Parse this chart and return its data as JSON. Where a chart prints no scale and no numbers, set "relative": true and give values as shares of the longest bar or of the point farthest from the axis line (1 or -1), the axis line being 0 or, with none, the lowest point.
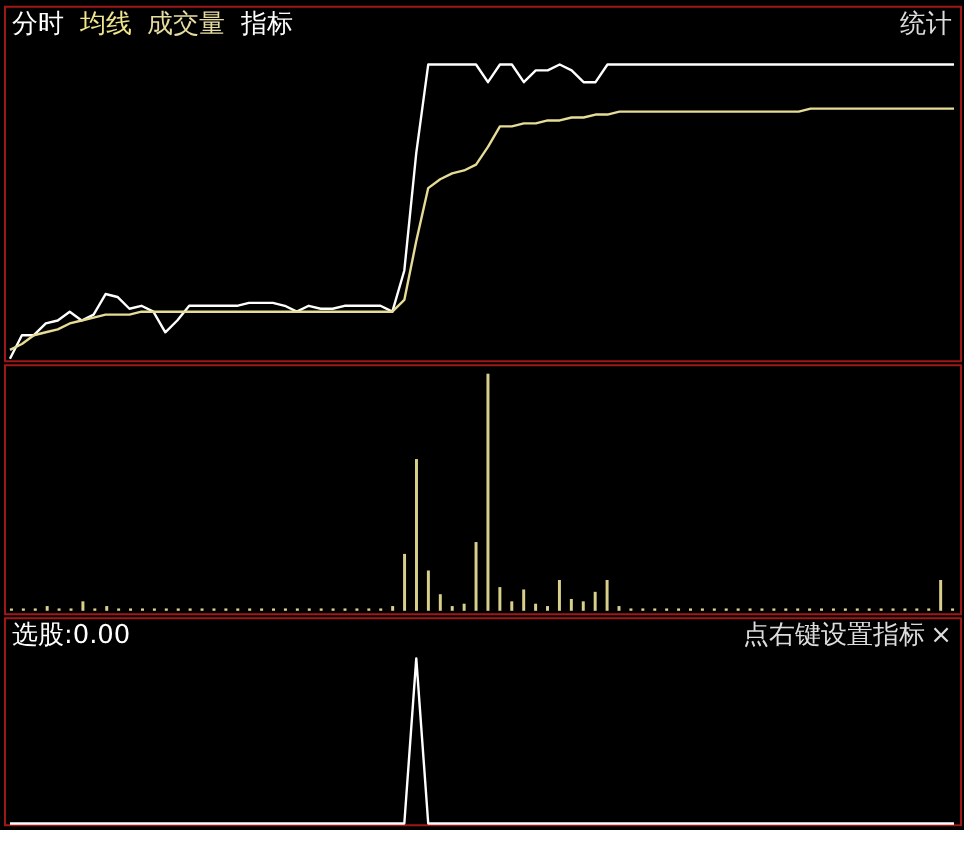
{
  "chart_data": [
    {
      "type": "line",
      "relative": true,
      "categories": [
        null,
        null,
        null,
        null,
        null,
        null,
        null,
        null,
        null,
        null,
        null,
        null,
        null,
        null,
        null,
        null,
        null,
        null,
        null,
        null,
        null,
        null,
        null,
        null,
        null,
        null,
        null,
        null,
        null,
        null,
        null,
        null,
        null,
        null,
        null,
        null,
        null,
        null,
        null,
        null,
        null,
        null,
        null,
        null,
        null,
        null,
        null,
        null,
        null,
        null,
        null,
        null,
        null,
        null,
        null,
        null,
        null,
        null,
        null,
        null,
        null,
        null,
        null,
        null,
        null,
        null,
        null,
        null,
        null,
        null,
        null,
        null,
        null,
        null,
        null,
        null,
        null,
        null,
        null,
        null
      ],
      "tick_labels": false,
      "marker": "none",
      "line_style": "solid",
      "annotations": [
        "分时",
        "均线",
        "成交量",
        "指标",
        "统计"
      ],
      "series": [
        {
          "color": "#ffffff",
          "values": [
            0,
            0.08,
            0.08,
            0.12,
            0.13,
            0.16,
            0.13,
            0.15,
            0.22,
            0.21,
            0.17,
            0.18,
            0.16,
            0.09,
            0.13,
            0.18,
            0.18,
            0.18,
            0.18,
            0.18,
            0.19,
            0.19,
            0.19,
            0.18,
            0.16,
            0.18,
            0.17,
            0.17,
            0.18,
            0.18,
            0.18,
            0.18,
            0.16,
            0.3,
            0.7,
            1,
            1,
            1,
            1,
            1,
            0.94,
            1,
            1,
            0.94,
            0.98,
            0.98,
            1,
            0.98,
            0.94,
            0.94,
            1,
            1,
            1,
            1,
            1,
            1,
            1,
            1,
            1,
            1,
            1,
            1,
            1,
            1,
            1,
            1,
            1,
            1,
            1,
            1,
            1,
            1,
            1,
            1,
            1,
            1,
            1,
            1,
            1,
            1
          ]
        },
        {
          "color": "#e6dc96",
          "values": [
            0.03,
            0.05,
            0.08,
            0.09,
            0.1,
            0.12,
            0.13,
            0.14,
            0.15,
            0.15,
            0.15,
            0.16,
            0.16,
            0.16,
            0.16,
            0.16,
            0.16,
            0.16,
            0.16,
            0.16,
            0.16,
            0.16,
            0.16,
            0.16,
            0.16,
            0.16,
            0.16,
            0.16,
            0.16,
            0.16,
            0.16,
            0.16,
            0.16,
            0.2,
            0.4,
            0.58,
            0.61,
            0.63,
            0.64,
            0.66,
            0.72,
            0.79,
            0.79,
            0.8,
            0.8,
            0.81,
            0.81,
            0.82,
            0.82,
            0.83,
            0.83,
            0.84,
            0.84,
            0.84,
            0.84,
            0.84,
            0.84,
            0.84,
            0.84,
            0.84,
            0.84,
            0.84,
            0.84,
            0.84,
            0.84,
            0.84,
            0.84,
            0.85,
            0.85,
            0.85,
            0.85,
            0.85,
            0.85,
            0.85,
            0.85,
            0.85,
            0.85,
            0.85,
            0.85,
            0.85
          ]
        }
      ]
    },
    {
      "type": "bar",
      "relative": true,
      "categories": [
        null,
        null,
        null,
        null,
        null,
        null,
        null,
        null,
        null,
        null,
        null,
        null,
        null,
        null,
        null,
        null,
        null,
        null,
        null,
        null,
        null,
        null,
        null,
        null,
        null,
        null,
        null,
        null,
        null,
        null,
        null,
        null,
        null,
        null,
        null,
        null,
        null,
        null,
        null,
        null,
        null,
        null,
        null,
        null,
        null,
        null,
        null,
        null,
        null,
        null,
        null,
        null,
        null,
        null,
        null,
        null,
        null,
        null,
        null,
        null,
        null,
        null,
        null,
        null,
        null,
        null,
        null,
        null,
        null,
        null,
        null,
        null,
        null,
        null,
        null,
        null,
        null,
        null,
        null,
        null
      ],
      "tick_labels": false,
      "color": "#d8d08a",
      "values": [
        0.01,
        0.01,
        0.01,
        0.02,
        0.01,
        0.01,
        0.04,
        0.01,
        0.02,
        0.01,
        0.01,
        0.01,
        0.01,
        0.01,
        0.01,
        0.01,
        0.01,
        0.01,
        0.01,
        0.01,
        0.01,
        0.01,
        0.01,
        0.01,
        0.01,
        0.01,
        0.01,
        0.01,
        0.01,
        0.01,
        0.01,
        0.01,
        0.02,
        0.24,
        0.64,
        0.17,
        0.07,
        0.02,
        0.03,
        0.29,
        1,
        0.1,
        0.04,
        0.09,
        0.03,
        0.02,
        0.13,
        0.05,
        0.04,
        0.08,
        0.13,
        0.02,
        0.01,
        0.01,
        0.01,
        0.01,
        0.01,
        0.01,
        0.01,
        0.01,
        0.01,
        0.01,
        0.01,
        0.01,
        0.01,
        0.01,
        0.01,
        0.01,
        0.01,
        0.01,
        0.01,
        0.01,
        0.01,
        0.01,
        0.01,
        0.01,
        0.01,
        0.01,
        0.13,
        0.01
      ]
    },
    {
      "type": "line",
      "relative": true,
      "categories": [
        null,
        null,
        null,
        null,
        null,
        null,
        null,
        null,
        null,
        null,
        null,
        null,
        null,
        null,
        null,
        null,
        null,
        null,
        null,
        null,
        null,
        null,
        null,
        null,
        null,
        null,
        null,
        null,
        null,
        null,
        null,
        null,
        null,
        null,
        null,
        null,
        null,
        null,
        null,
        null,
        null,
        null,
        null,
        null,
        null,
        null,
        null,
        null,
        null,
        null,
        null,
        null,
        null,
        null,
        null,
        null,
        null,
        null,
        null,
        null,
        null,
        null,
        null,
        null,
        null,
        null,
        null,
        null,
        null,
        null,
        null,
        null,
        null,
        null,
        null,
        null,
        null,
        null,
        null,
        null
      ],
      "tick_labels": false,
      "line_style": "solid",
      "color": "#ffffff",
      "values": [
        0,
        0,
        0,
        0,
        0,
        0,
        0,
        0,
        0,
        0,
        0,
        0,
        0,
        0,
        0,
        0,
        0,
        0,
        0,
        0,
        0,
        0,
        0,
        0,
        0,
        0,
        0,
        0,
        0,
        0,
        0,
        0,
        0,
        0,
        1,
        0,
        0,
        0,
        0,
        0,
        0,
        0,
        0,
        0,
        0,
        0,
        0,
        0,
        0,
        0,
        0,
        0,
        0,
        0,
        0,
        0,
        0,
        0,
        0,
        0,
        0,
        0,
        0,
        0,
        0,
        0,
        0,
        0,
        0,
        0,
        0,
        0,
        0,
        0,
        0,
        0,
        0,
        0,
        0,
        0
      ],
      "annotations": [
        "选股:0.00",
        "点右键设置指标",
        "×"
      ]
    }
  ]
}
